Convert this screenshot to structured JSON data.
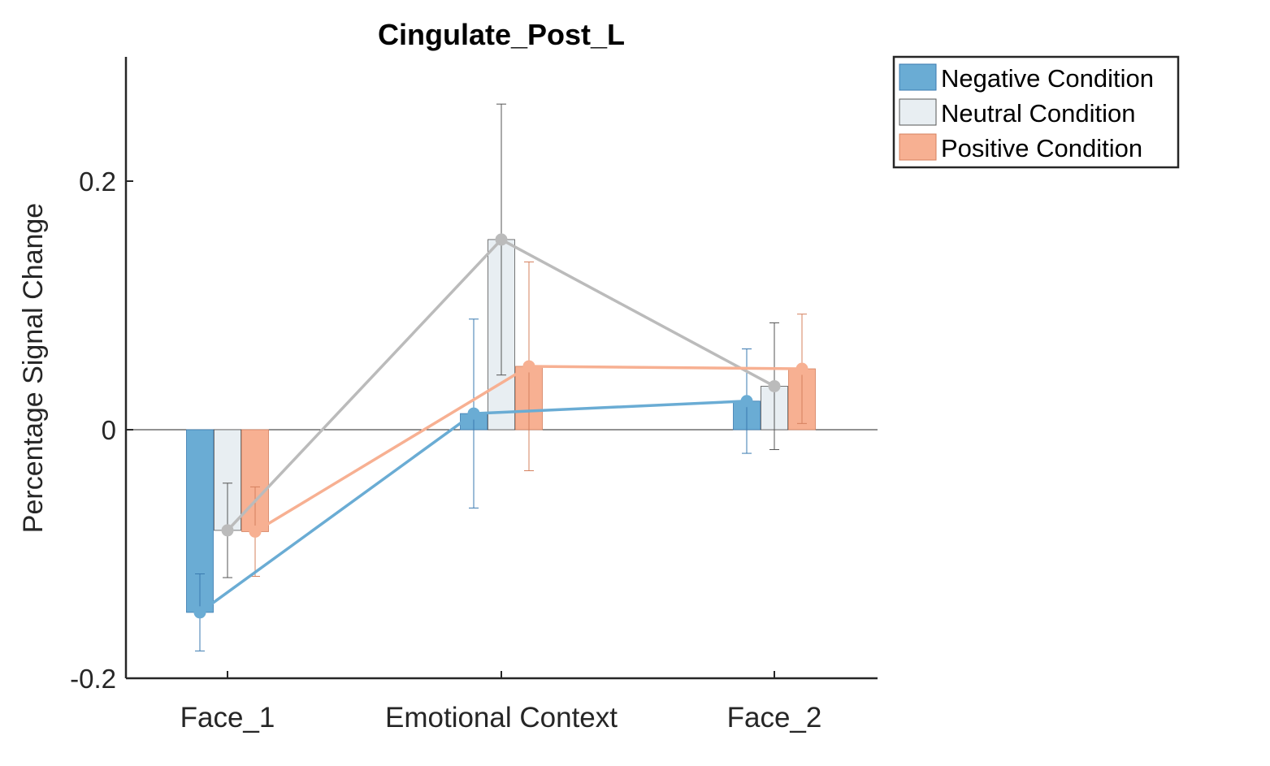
{
  "chart_data": {
    "type": "bar",
    "title": "Cingulate_Post_L",
    "xlabel": "",
    "ylabel": "Percentage Signal Change",
    "categories": [
      "Face_1",
      "Emotional Context",
      "Face_2"
    ],
    "ylim": [
      -0.2,
      0.3
    ],
    "yticks": [
      -0.2,
      0,
      0.2
    ],
    "ytick_labels": [
      "-0.2",
      "0",
      "0.2"
    ],
    "grid": false,
    "legend_position": "outside-top-right",
    "series": [
      {
        "name": "Negative Condition",
        "color": "#6aacd4",
        "values": [
          -0.147,
          0.013,
          0.023
        ],
        "errors": [
          0.031,
          0.076,
          0.042
        ]
      },
      {
        "name": "Neutral Condition",
        "color": "#e8eef2",
        "line_color": "#bbbbbb",
        "values": [
          -0.081,
          0.153,
          0.035
        ],
        "errors": [
          0.038,
          0.109,
          0.051
        ]
      },
      {
        "name": "Positive Condition",
        "color": "#f7b092",
        "values": [
          -0.082,
          0.051,
          0.049
        ],
        "errors": [
          0.036,
          0.084,
          0.044
        ]
      }
    ]
  }
}
